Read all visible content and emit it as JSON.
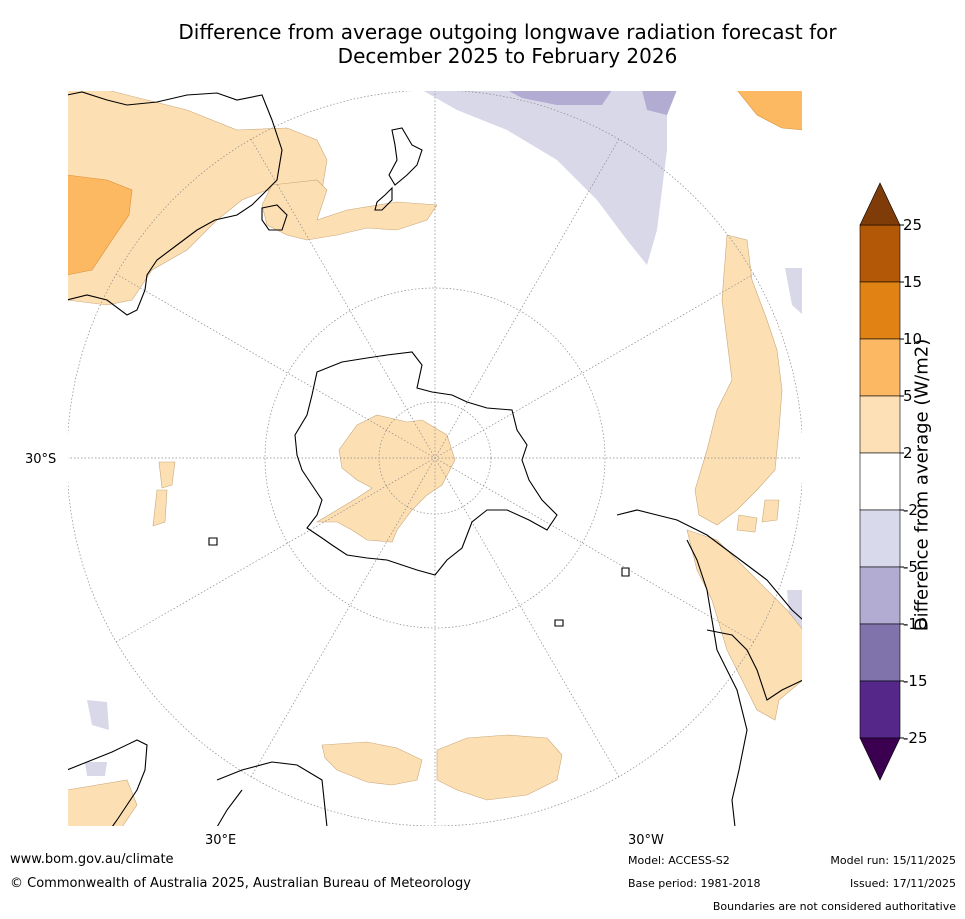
{
  "title": {
    "line1": "Difference from average outgoing longwave radiation forecast for",
    "line2": "December 2025 to February 2026"
  },
  "map": {
    "projection": "south polar stereographic",
    "axis_labels": {
      "lat": "30°S",
      "lon_east": "30°E",
      "lon_west": "30°W"
    },
    "colors": {
      "anomaly_2_5": "#fddfb4",
      "anomaly_5_10": "#fdb862",
      "anomaly_neg2_neg5": "#d8d8e9",
      "anomaly_neg5_neg10": "#b2abd2",
      "coastline": "#000000",
      "graticule": "#888888"
    },
    "regions": [
      "Australia",
      "New Zealand",
      "Antarctica",
      "South America",
      "Southern Africa",
      "Madagascar"
    ]
  },
  "colorbar": {
    "label": "Difference from average (W/m2)",
    "ticks": [
      "25",
      "15",
      "10",
      "5",
      "2",
      "-2",
      "-5",
      "-10",
      "-15",
      "-25"
    ],
    "colors": [
      "#3b0050",
      "#542788",
      "#8073ac",
      "#b2abd2",
      "#d8daeb",
      "#ffffff",
      "#fee0b6",
      "#fdb863",
      "#e08214",
      "#b35806",
      "#7f3b08"
    ]
  },
  "footer": {
    "website": "www.bom.gov.au/climate",
    "copyright": "© Commonwealth of Australia 2025, Australian Bureau of Meteorology",
    "model": "Model: ACCESS-S2",
    "base_period": "Base period: 1981-2018",
    "model_run": "Model run: 15/11/2025",
    "issued": "Issued: 17/11/2025",
    "disclaimer": "Boundaries are not considered authoritative"
  }
}
